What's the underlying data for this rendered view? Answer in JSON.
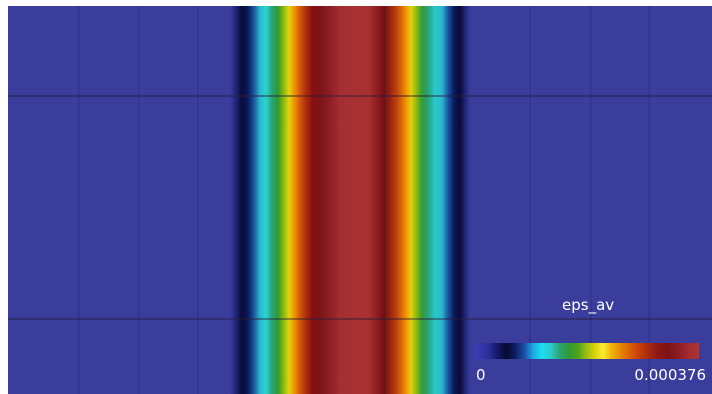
{
  "legend": {
    "title": "eps_av",
    "min_label": "0",
    "max_label": "0.000376",
    "colors": {
      "low": "#3b3dba",
      "mid": "#e0d40a",
      "high": "#ab3434"
    }
  },
  "view": {
    "background_color": "#3a3d9c",
    "grid": true
  }
}
